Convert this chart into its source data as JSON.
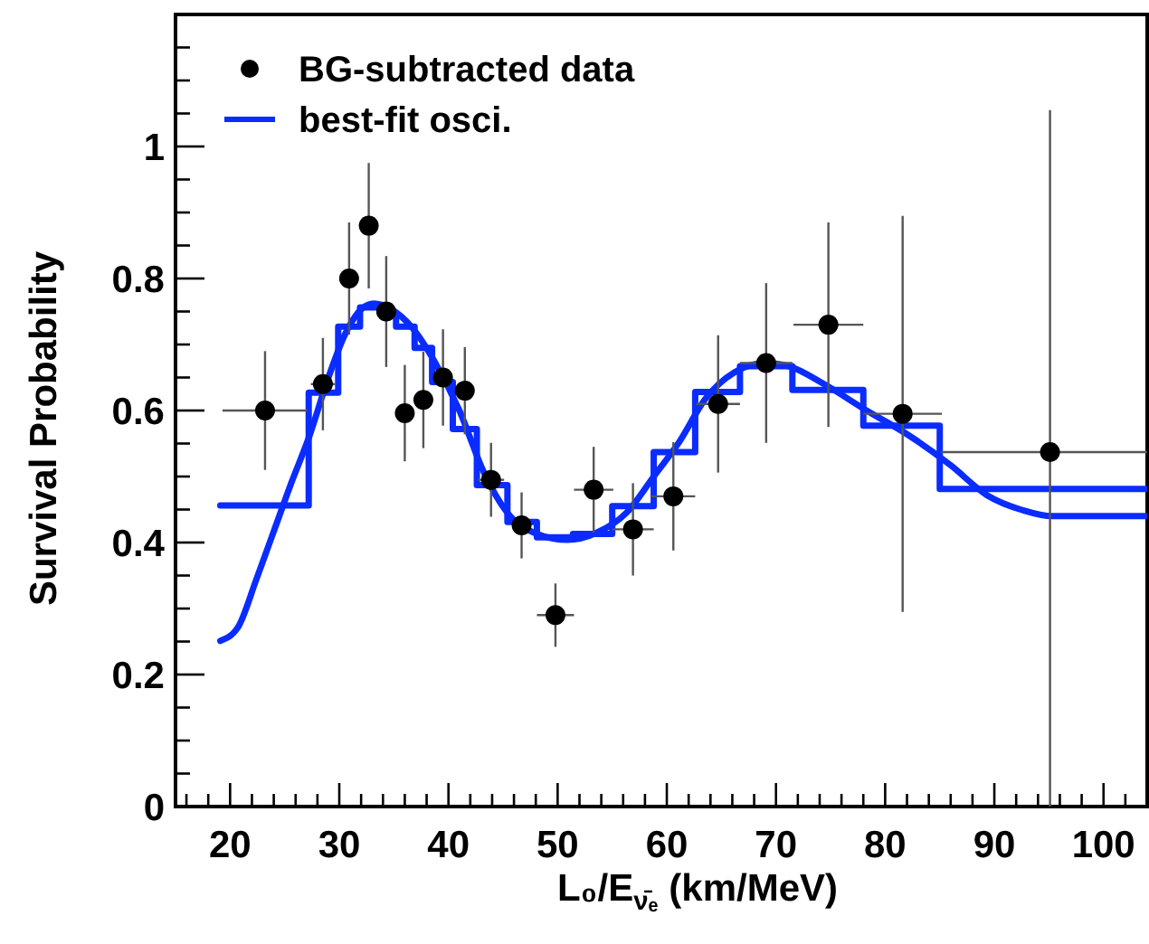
{
  "chart_data": {
    "type": "scatter",
    "xlabel": "L₀/E$_{ν̄ₑ}$ (km/MeV)",
    "ylabel": "Survival Probability",
    "xlim": [
      15,
      104
    ],
    "ylim": [
      0,
      1.2
    ],
    "xticks": [
      {
        "value": 16,
        "label": null
      },
      {
        "value": 18,
        "label": null
      },
      20,
      {
        "value": 22,
        "label": null
      },
      {
        "value": 24,
        "label": null
      },
      {
        "value": 26,
        "label": null
      },
      {
        "value": 28,
        "label": null
      },
      30,
      {
        "value": 32,
        "label": null
      },
      {
        "value": 34,
        "label": null
      },
      {
        "value": 36,
        "label": null
      },
      {
        "value": 38,
        "label": null
      },
      40,
      {
        "value": 42,
        "label": null
      },
      {
        "value": 44,
        "label": null
      },
      {
        "value": 46,
        "label": null
      },
      {
        "value": 48,
        "label": null
      },
      50,
      {
        "value": 52,
        "label": null
      },
      {
        "value": 54,
        "label": null
      },
      {
        "value": 56,
        "label": null
      },
      {
        "value": 58,
        "label": null
      },
      60,
      {
        "value": 62,
        "label": null
      },
      {
        "value": 64,
        "label": null
      },
      {
        "value": 66,
        "label": null
      },
      {
        "value": 68,
        "label": null
      },
      70,
      {
        "value": 72,
        "label": null
      },
      {
        "value": 74,
        "label": null
      },
      {
        "value": 76,
        "label": null
      },
      {
        "value": 78,
        "label": null
      },
      80,
      {
        "value": 82,
        "label": null
      },
      {
        "value": 84,
        "label": null
      },
      {
        "value": 86,
        "label": null
      },
      {
        "value": 88,
        "label": null
      },
      90,
      {
        "value": 92,
        "label": null
      },
      {
        "value": 94,
        "label": null
      },
      {
        "value": 96,
        "label": null
      },
      {
        "value": 98,
        "label": null
      },
      100,
      {
        "value": 102,
        "label": null
      }
    ],
    "yticks": [
      0,
      {
        "value": 0.05,
        "label": null
      },
      {
        "value": 0.1,
        "label": null
      },
      {
        "value": 0.15,
        "label": null
      },
      0.2,
      {
        "value": 0.25,
        "label": null
      },
      {
        "value": 0.3,
        "label": null
      },
      {
        "value": 0.35,
        "label": null
      },
      0.4,
      {
        "value": 0.45,
        "label": null
      },
      {
        "value": 0.5,
        "label": null
      },
      {
        "value": 0.55,
        "label": null
      },
      0.6,
      {
        "value": 0.65,
        "label": null
      },
      {
        "value": 0.7,
        "label": null
      },
      {
        "value": 0.75,
        "label": null
      },
      0.8,
      {
        "value": 0.85,
        "label": null
      },
      {
        "value": 0.9,
        "label": null
      },
      {
        "value": 0.95,
        "label": null
      },
      1,
      {
        "value": 1.05,
        "label": null
      },
      {
        "value": 1.1,
        "label": null
      },
      {
        "value": 1.15,
        "label": null
      }
    ],
    "grid": false,
    "legend": "top left",
    "series": [
      {
        "name": "BG-subtracted data",
        "marker": "circle",
        "color": "#000000",
        "x": [
          23.2,
          28.5,
          30.9,
          32.7,
          34.3,
          36.0,
          37.7,
          39.5,
          41.5,
          43.9,
          46.7,
          49.8,
          53.3,
          56.9,
          60.6,
          64.7,
          69.1,
          74.8,
          81.6,
          95.1
        ],
        "values": [
          0.6,
          0.64,
          0.8,
          0.88,
          0.75,
          0.596,
          0.616,
          0.65,
          0.63,
          0.495,
          0.426,
          0.29,
          0.48,
          0.42,
          0.47,
          0.61,
          0.672,
          0.73,
          0.595,
          0.537
        ],
        "errors": [
          0.09,
          0.07,
          0.085,
          0.095,
          0.084,
          0.073,
          0.073,
          0.073,
          0.066,
          0.056,
          0.05,
          0.048,
          0.065,
          0.07,
          0.082,
          0.104,
          0.121,
          0.155,
          0.3,
          [
            0,
            1.055
          ]
        ],
        "xerrors": [
          3.9,
          1.1,
          null,
          null,
          null,
          null,
          null,
          null,
          null,
          1.2,
          null,
          1.7,
          1.8,
          1.9,
          2.0,
          2.0,
          2.4,
          3.2,
          3.6,
          [
            85.1,
            104
          ]
        ]
      },
      {
        "type": "step",
        "color": "#0a2cff",
        "x": [
          19.1,
          27.2,
          29.9,
          31.9,
          33.9,
          35.2,
          36.9,
          38.5,
          40.4,
          42.6,
          45.4,
          48.1,
          51.4,
          55.0,
          58.8,
          62.6,
          66.7,
          71.5,
          78.0,
          85.0,
          104
        ],
        "values": [
          0.456,
          0.627,
          0.727,
          0.756,
          0.745,
          0.727,
          0.695,
          0.643,
          0.572,
          0.487,
          0.431,
          0.408,
          0.413,
          0.455,
          0.537,
          0.628,
          0.667,
          0.631,
          0.577,
          0.481,
          0.481
        ]
      },
      {
        "name": "best-fit osci.",
        "type": "line",
        "color": "#0a2cff",
        "x": [
          19.1,
          20.7,
          22.4,
          24.0,
          25.6,
          27.3,
          28.9,
          30.6,
          32.2,
          33.2,
          34.7,
          36.6,
          38.8,
          41.0,
          43.2,
          45.4,
          48.1,
          50.9,
          53.6,
          56.3,
          58.8,
          61.2,
          63.5,
          66.2,
          69.0,
          71.2,
          74.4,
          78.3,
          82.1,
          86.0,
          89.3,
          92.6,
          95.3,
          103.8
        ],
        "values": [
          0.251,
          0.271,
          0.344,
          0.417,
          0.49,
          0.563,
          0.645,
          0.718,
          0.756,
          0.762,
          0.754,
          0.727,
          0.672,
          0.6,
          0.508,
          0.445,
          0.413,
          0.404,
          0.415,
          0.445,
          0.5,
          0.554,
          0.617,
          0.658,
          0.672,
          0.667,
          0.64,
          0.6,
          0.563,
          0.517,
          0.472,
          0.449,
          0.44,
          0.44
        ]
      }
    ]
  }
}
